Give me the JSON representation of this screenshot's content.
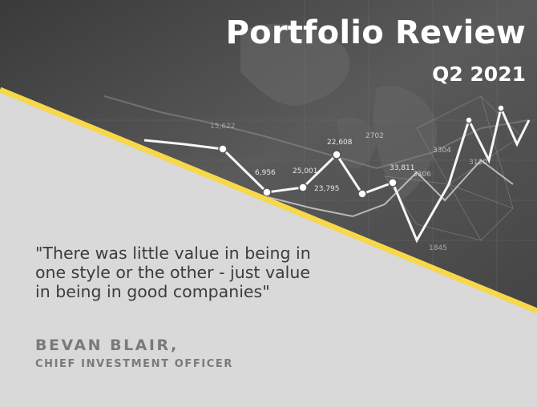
{
  "header": {
    "title": "Portfolio Review",
    "subtitle": "Q2 2021"
  },
  "background": {
    "decor_labels": [
      "6,956",
      "25,001",
      "22,608",
      "23,795",
      "33,811",
      "15,622",
      "2702",
      "3304",
      "3306",
      "3120",
      "1845"
    ]
  },
  "quote": {
    "text": "\"There was little value in being in one style or the other - just value in being in good companies\""
  },
  "author": {
    "name": "BEVAN BLAIR,",
    "role": "CHIEF INVESTMENT OFFICER"
  },
  "colors": {
    "accent_stripe": "#f6d84a",
    "dark_area": "#4a4a4a",
    "light_area": "#d9d9d9",
    "quote_text": "#3c3c3c",
    "author_text": "#7a7a7a"
  }
}
